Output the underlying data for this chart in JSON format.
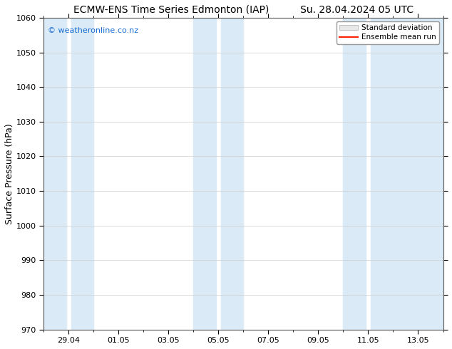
{
  "title_left": "ECMW-ENS Time Series Edmonton (IAP)",
  "title_right": "Su. 28.04.2024 05 UTC",
  "ylabel": "Surface Pressure (hPa)",
  "ylim": [
    970,
    1060
  ],
  "yticks": [
    970,
    980,
    990,
    1000,
    1010,
    1020,
    1030,
    1040,
    1050,
    1060
  ],
  "xtick_labels": [
    "29.04",
    "01.05",
    "03.05",
    "05.05",
    "07.05",
    "09.05",
    "11.05",
    "13.05"
  ],
  "watermark": "© weatheronline.co.nz",
  "watermark_color": "#1a6fd4",
  "bg_color": "#ffffff",
  "band_color": "#daeaf7",
  "band_alpha": 1.0,
  "legend_std_color": "#cccccc",
  "legend_mean_color": "#ff2200",
  "title_fontsize": 10,
  "axis_fontsize": 8,
  "band_ranges_days": [
    [
      0.0,
      2.0
    ],
    [
      6.0,
      7.0
    ],
    [
      7.5,
      8.5
    ],
    [
      12.0,
      13.0
    ],
    [
      13.5,
      16.0
    ]
  ]
}
